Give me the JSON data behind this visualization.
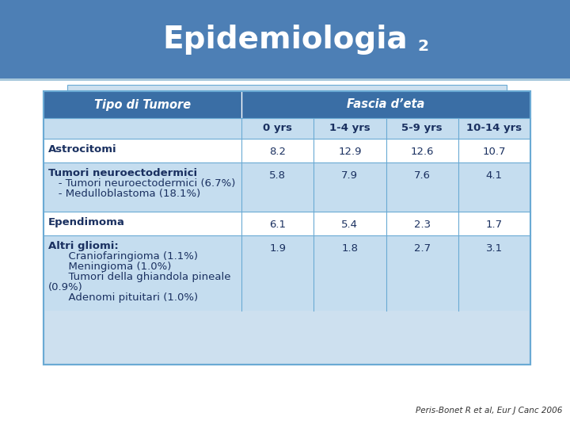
{
  "title_main": "Epidemiologia",
  "title_subscript": "2",
  "slide_bg_top": "#4d7fb5",
  "slide_bg_bottom": "#ffffff",
  "table_border_color": "#6aaad4",
  "table_outer_bg": "#cde0ef",
  "header_row1_bg": "#3a6ea5",
  "header_row1_color": "#ffffff",
  "header_row2_bg": "#c5ddef",
  "header_row2_color": "#1a3a5c",
  "row_odd_bg": "#ffffff",
  "row_even_bg": "#c5ddef",
  "row_text_color": "#1a3060",
  "col_header": "Tipo di Tumore",
  "col_fascia": "Fascia d’eta",
  "sub_headers": [
    "0 yrs",
    "1-4 yrs",
    "5-9 yrs",
    "10-14 yrs"
  ],
  "rows": [
    {
      "label": "Astrocitomi",
      "label_lines": [
        "Astrocitomi"
      ],
      "values": [
        "8.2",
        "12.9",
        "12.6",
        "10.7"
      ],
      "bold_first": true
    },
    {
      "label": "Tumori neuroectodermici",
      "label_lines": [
        "Tumori neuroectodermici",
        "   - Tumori neuroectodermici (6.7%)",
        "   - Medulloblastoma (18.1%)"
      ],
      "values": [
        "5.8",
        "7.9",
        "7.6",
        "4.1"
      ],
      "bold_first": true
    },
    {
      "label": "Ependimoma",
      "label_lines": [
        "Ependimoma"
      ],
      "values": [
        "6.1",
        "5.4",
        "2.3",
        "1.7"
      ],
      "bold_first": true
    },
    {
      "label": "Altri gliomi:",
      "label_lines": [
        "Altri gliomi:",
        "      Craniofaringioma (1.1%)",
        "      Meningioma (1.0%)",
        "      Tumori della ghiandola pineale",
        "(0.9%)",
        "      Adenomi pituitari (1.0%)"
      ],
      "values": [
        "1.9",
        "1.8",
        "2.7",
        "3.1"
      ],
      "bold_first": true
    }
  ],
  "footnote": "Peris-Bonet R et al, Eur J Canc 2006",
  "title_fontsize": 28,
  "header_fontsize": 10.5,
  "subheader_fontsize": 9.5,
  "cell_fontsize": 9.5
}
